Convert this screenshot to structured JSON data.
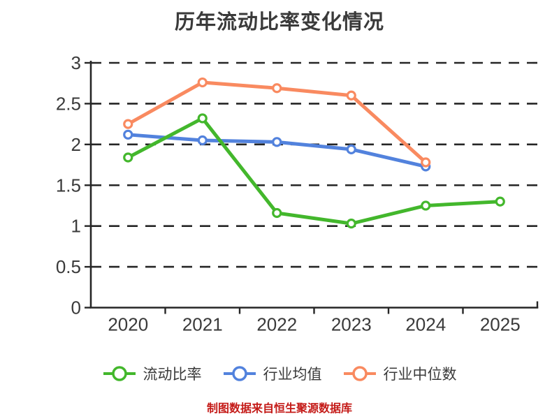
{
  "title": "历年流动比率变化情况",
  "note": "制图数据来自恒生聚源数据库",
  "colors": {
    "text": "#3a3a3a",
    "axis": "#262626",
    "grid": "#262626",
    "marker_fill": "#ffffff",
    "note_red": "#c41a17",
    "series_green": "#43b72c",
    "series_blue": "#5282dd",
    "series_orange": "#f98a60"
  },
  "chart_data": {
    "type": "line",
    "title": "历年流动比率变化情况",
    "categories": [
      "2020",
      "2021",
      "2022",
      "2023",
      "2024",
      "2025"
    ],
    "series": [
      {
        "name": "流动比率",
        "color": "#43b72c",
        "values": [
          1.84,
          2.32,
          1.16,
          1.03,
          1.25,
          1.3
        ]
      },
      {
        "name": "行业均值",
        "color": "#5282dd",
        "values": [
          2.12,
          2.05,
          2.03,
          1.94,
          1.73,
          null
        ]
      },
      {
        "name": "行业中位数",
        "color": "#f98a60",
        "values": [
          2.25,
          2.76,
          2.69,
          2.6,
          1.78,
          null
        ]
      }
    ],
    "ylim": [
      0,
      3
    ],
    "yticks": [
      0,
      0.5,
      1,
      1.5,
      2,
      2.5,
      3
    ],
    "xlabel": "",
    "ylabel": "",
    "grid": true,
    "grid_style": "dashed",
    "legend_position": "bottom",
    "source_note": "制图数据来自恒生聚源数据库"
  }
}
